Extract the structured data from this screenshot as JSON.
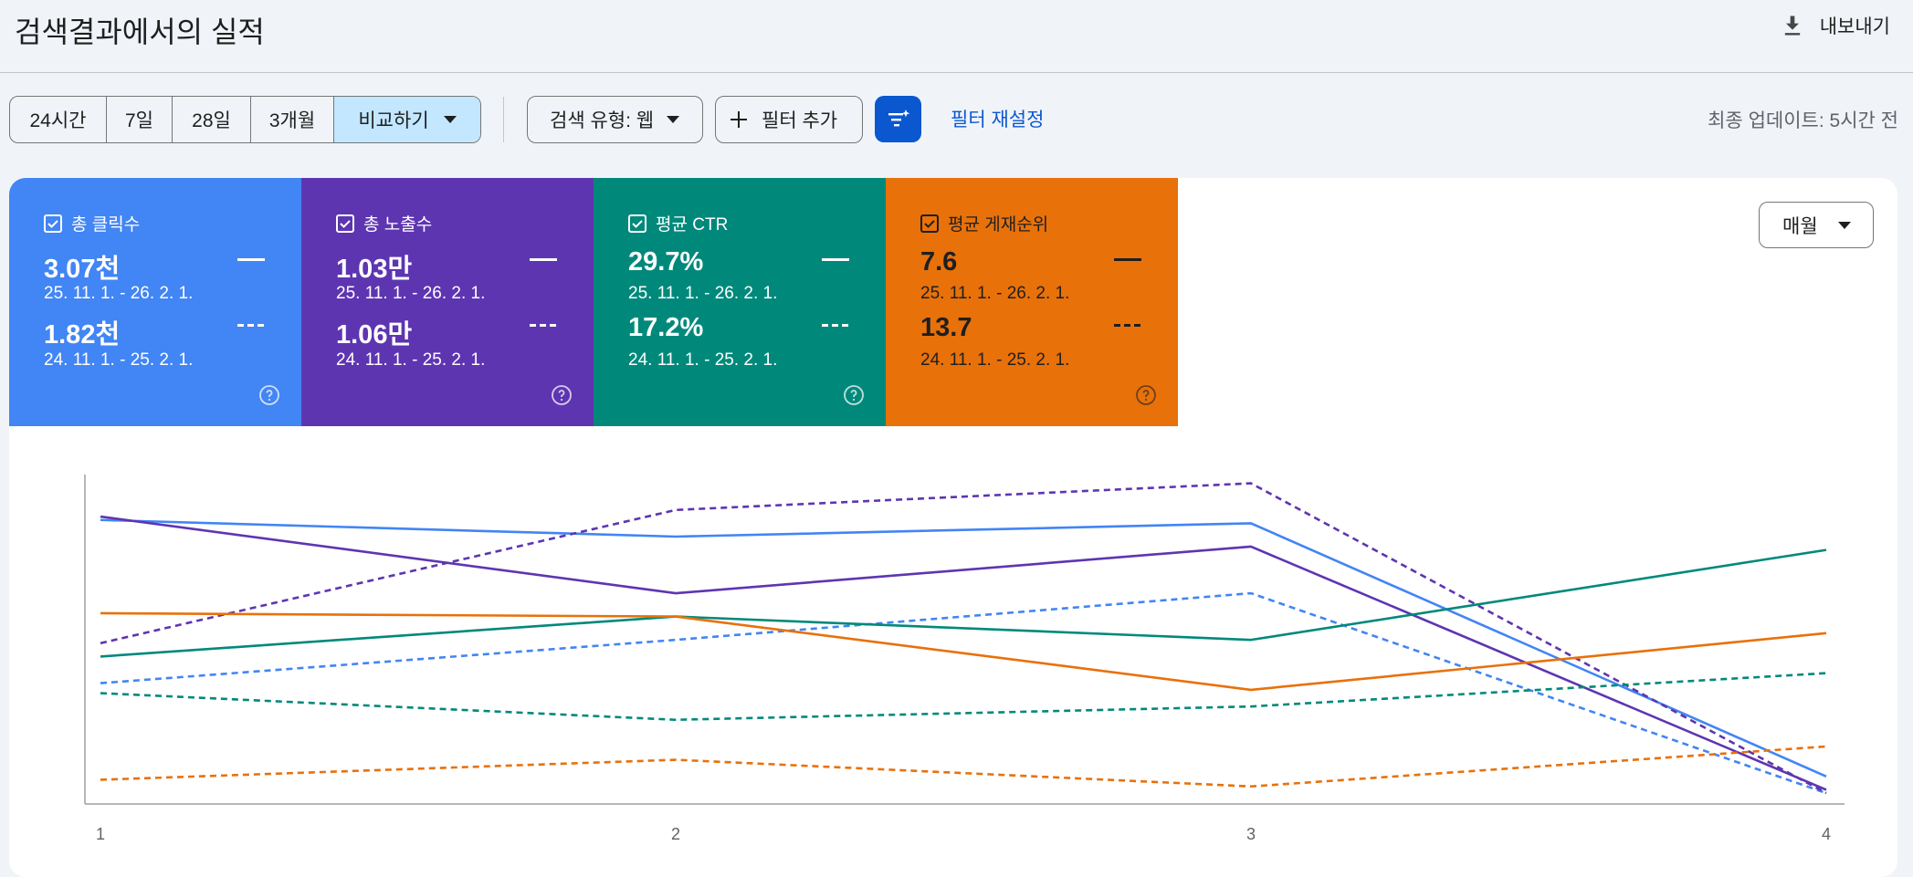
{
  "header": {
    "title": "검색결과에서의 실적",
    "export_label": "내보내기"
  },
  "toolbar": {
    "date_ranges": [
      "24시간",
      "7일",
      "28일",
      "3개월"
    ],
    "compare_label": "비교하기",
    "search_type_label": "검색 유형: 웹",
    "add_filter_label": "필터 추가",
    "reset_filters_label": "필터 재설정",
    "last_updated": "최종 업데이트: 5시간 전"
  },
  "metrics": [
    {
      "label": "총 클릭수",
      "value_current": "3.07천",
      "date_current": "25. 11. 1. - 26. 2. 1.",
      "value_previous": "1.82천",
      "date_previous": "24. 11. 1. - 25. 2. 1.",
      "color": "#4285f4",
      "checked": true
    },
    {
      "label": "총 노출수",
      "value_current": "1.03만",
      "date_current": "25. 11. 1. - 26. 2. 1.",
      "value_previous": "1.06만",
      "date_previous": "24. 11. 1. - 25. 2. 1.",
      "color": "#5e35b1",
      "checked": true
    },
    {
      "label": "평균 CTR",
      "value_current": "29.7%",
      "date_current": "25. 11. 1. - 26. 2. 1.",
      "value_previous": "17.2%",
      "date_previous": "24. 11. 1. - 25. 2. 1.",
      "color": "#00897b",
      "checked": true
    },
    {
      "label": "평균 게재순위",
      "value_current": "7.6",
      "date_current": "25. 11. 1. - 26. 2. 1.",
      "value_previous": "13.7",
      "date_previous": "24. 11. 1. - 25. 2. 1.",
      "color": "#e8710a",
      "checked": true
    }
  ],
  "period_dropdown": {
    "selected": "매월"
  },
  "chart_data": {
    "type": "line",
    "x": [
      1,
      2,
      3,
      4
    ],
    "ylim": [
      0,
      1
    ],
    "grid": false,
    "series": [
      {
        "metric": "clicks",
        "period": "current",
        "style": "solid",
        "color": "#4285f4",
        "values": [
          0.85,
          0.8,
          0.84,
          0.08
        ]
      },
      {
        "metric": "clicks",
        "period": "previous",
        "style": "dashed",
        "color": "#4285f4",
        "values": [
          0.36,
          0.49,
          0.63,
          0.03
        ]
      },
      {
        "metric": "impressions",
        "period": "current",
        "style": "solid",
        "color": "#5e35b1",
        "values": [
          0.86,
          0.63,
          0.77,
          0.04
        ]
      },
      {
        "metric": "impressions",
        "period": "previous",
        "style": "dashed",
        "color": "#5e35b1",
        "values": [
          0.48,
          0.88,
          0.96,
          0.03
        ]
      },
      {
        "metric": "ctr",
        "period": "current",
        "style": "solid",
        "color": "#00897b",
        "values": [
          0.44,
          0.56,
          0.49,
          0.76
        ]
      },
      {
        "metric": "ctr",
        "period": "previous",
        "style": "dashed",
        "color": "#00897b",
        "values": [
          0.33,
          0.25,
          0.29,
          0.39
        ]
      },
      {
        "metric": "position",
        "period": "current",
        "style": "solid",
        "color": "#e8710a",
        "values": [
          0.57,
          0.56,
          0.34,
          0.51
        ]
      },
      {
        "metric": "position",
        "period": "previous",
        "style": "dashed",
        "color": "#e8710a",
        "values": [
          0.07,
          0.13,
          0.05,
          0.17
        ]
      }
    ]
  }
}
